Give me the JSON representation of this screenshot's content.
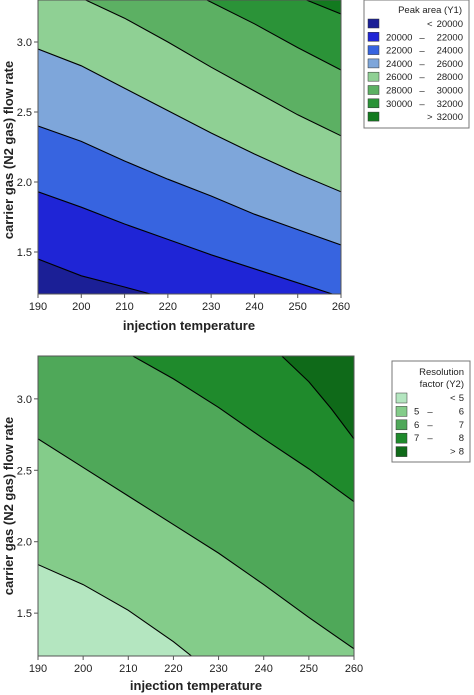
{
  "chart_data": [
    {
      "type": "heatmap",
      "subtype": "filled-contour",
      "xlabel": "injection temperature",
      "ylabel": "carrier gas (N2 gas) flow rate",
      "xlim": [
        190,
        260
      ],
      "ylim": [
        1.2,
        3.3
      ],
      "xticks": [
        "190",
        "200",
        "210",
        "220",
        "230",
        "240",
        "250",
        "260"
      ],
      "yticks": [
        "1.5",
        "2.0",
        "2.5",
        "3.0"
      ],
      "legend_title": "Peak area (Y1)",
      "legend_position": "top-right",
      "legend": [
        {
          "low": "<",
          "high": "20000",
          "color": "#1b1f96"
        },
        {
          "low": "20000",
          "high": "22000",
          "color": "#1f25d6"
        },
        {
          "low": "22000",
          "high": "24000",
          "color": "#3764e0"
        },
        {
          "low": "24000",
          "high": "26000",
          "color": "#7ea6da"
        },
        {
          "low": "26000",
          "high": "28000",
          "color": "#8fd094"
        },
        {
          "low": "28000",
          "high": "30000",
          "color": "#5cb063"
        },
        {
          "low": "30000",
          "high": "32000",
          "color": "#2b9338"
        },
        {
          "low": ">",
          "high": "32000",
          "color": "#137a1f"
        }
      ],
      "contours": [
        [
          [
            190,
            1.45
          ],
          [
            200,
            1.33
          ],
          [
            210,
            1.25
          ],
          [
            216,
            1.2
          ]
        ],
        [
          [
            190,
            1.93
          ],
          [
            200,
            1.82
          ],
          [
            210,
            1.7
          ],
          [
            220,
            1.59
          ],
          [
            230,
            1.48
          ],
          [
            240,
            1.38
          ],
          [
            250,
            1.28
          ],
          [
            258,
            1.2
          ]
        ],
        [
          [
            190,
            2.4
          ],
          [
            200,
            2.29
          ],
          [
            210,
            2.15
          ],
          [
            220,
            2.02
          ],
          [
            230,
            1.9
          ],
          [
            240,
            1.77
          ],
          [
            250,
            1.66
          ],
          [
            260,
            1.55
          ]
        ],
        [
          [
            190,
            2.95
          ],
          [
            200,
            2.83
          ],
          [
            210,
            2.67
          ],
          [
            220,
            2.51
          ],
          [
            230,
            2.35
          ],
          [
            240,
            2.2
          ],
          [
            250,
            2.06
          ],
          [
            260,
            1.93
          ]
        ],
        [
          [
            201,
            3.3
          ],
          [
            210,
            3.17
          ],
          [
            220,
            3.0
          ],
          [
            230,
            2.82
          ],
          [
            240,
            2.65
          ],
          [
            250,
            2.48
          ],
          [
            260,
            2.33
          ]
        ],
        [
          [
            229,
            3.3
          ],
          [
            240,
            3.13
          ],
          [
            250,
            2.96
          ],
          [
            260,
            2.8
          ]
        ],
        [
          [
            252,
            3.3
          ],
          [
            260,
            3.2
          ]
        ]
      ]
    },
    {
      "type": "heatmap",
      "subtype": "filled-contour",
      "xlabel": "injection temperature",
      "ylabel": "carrier gas (N2 gas) flow rate",
      "xlim": [
        190,
        260
      ],
      "ylim": [
        1.2,
        3.3
      ],
      "xticks": [
        "190",
        "200",
        "210",
        "220",
        "230",
        "240",
        "250",
        "260"
      ],
      "yticks": [
        "1.5",
        "2.0",
        "2.5",
        "3.0"
      ],
      "legend_title_lines": [
        "Resolution",
        "factor (Y2)"
      ],
      "legend_position": "top-right",
      "legend": [
        {
          "low": "<",
          "high": "5",
          "color": "#b4e6c0"
        },
        {
          "low": "5",
          "high": "6",
          "color": "#84cc8a"
        },
        {
          "low": "6",
          "high": "7",
          "color": "#4fa859"
        },
        {
          "low": "7",
          "high": "8",
          "color": "#1f8a2c"
        },
        {
          "low": ">",
          "high": "8",
          "color": "#0f6a19"
        }
      ],
      "contours": [
        [
          [
            190,
            1.84
          ],
          [
            200,
            1.7
          ],
          [
            210,
            1.52
          ],
          [
            220,
            1.3
          ],
          [
            224,
            1.2
          ]
        ],
        [
          [
            190,
            2.72
          ],
          [
            200,
            2.52
          ],
          [
            210,
            2.32
          ],
          [
            220,
            2.12
          ],
          [
            230,
            1.92
          ],
          [
            240,
            1.7
          ],
          [
            250,
            1.47
          ],
          [
            260,
            1.25
          ]
        ],
        [
          [
            211,
            3.3
          ],
          [
            220,
            3.14
          ],
          [
            230,
            2.94
          ],
          [
            240,
            2.72
          ],
          [
            250,
            2.51
          ],
          [
            260,
            2.28
          ]
        ],
        [
          [
            244,
            3.3
          ],
          [
            250,
            3.12
          ],
          [
            255,
            2.93
          ],
          [
            260,
            2.72
          ]
        ]
      ]
    }
  ]
}
